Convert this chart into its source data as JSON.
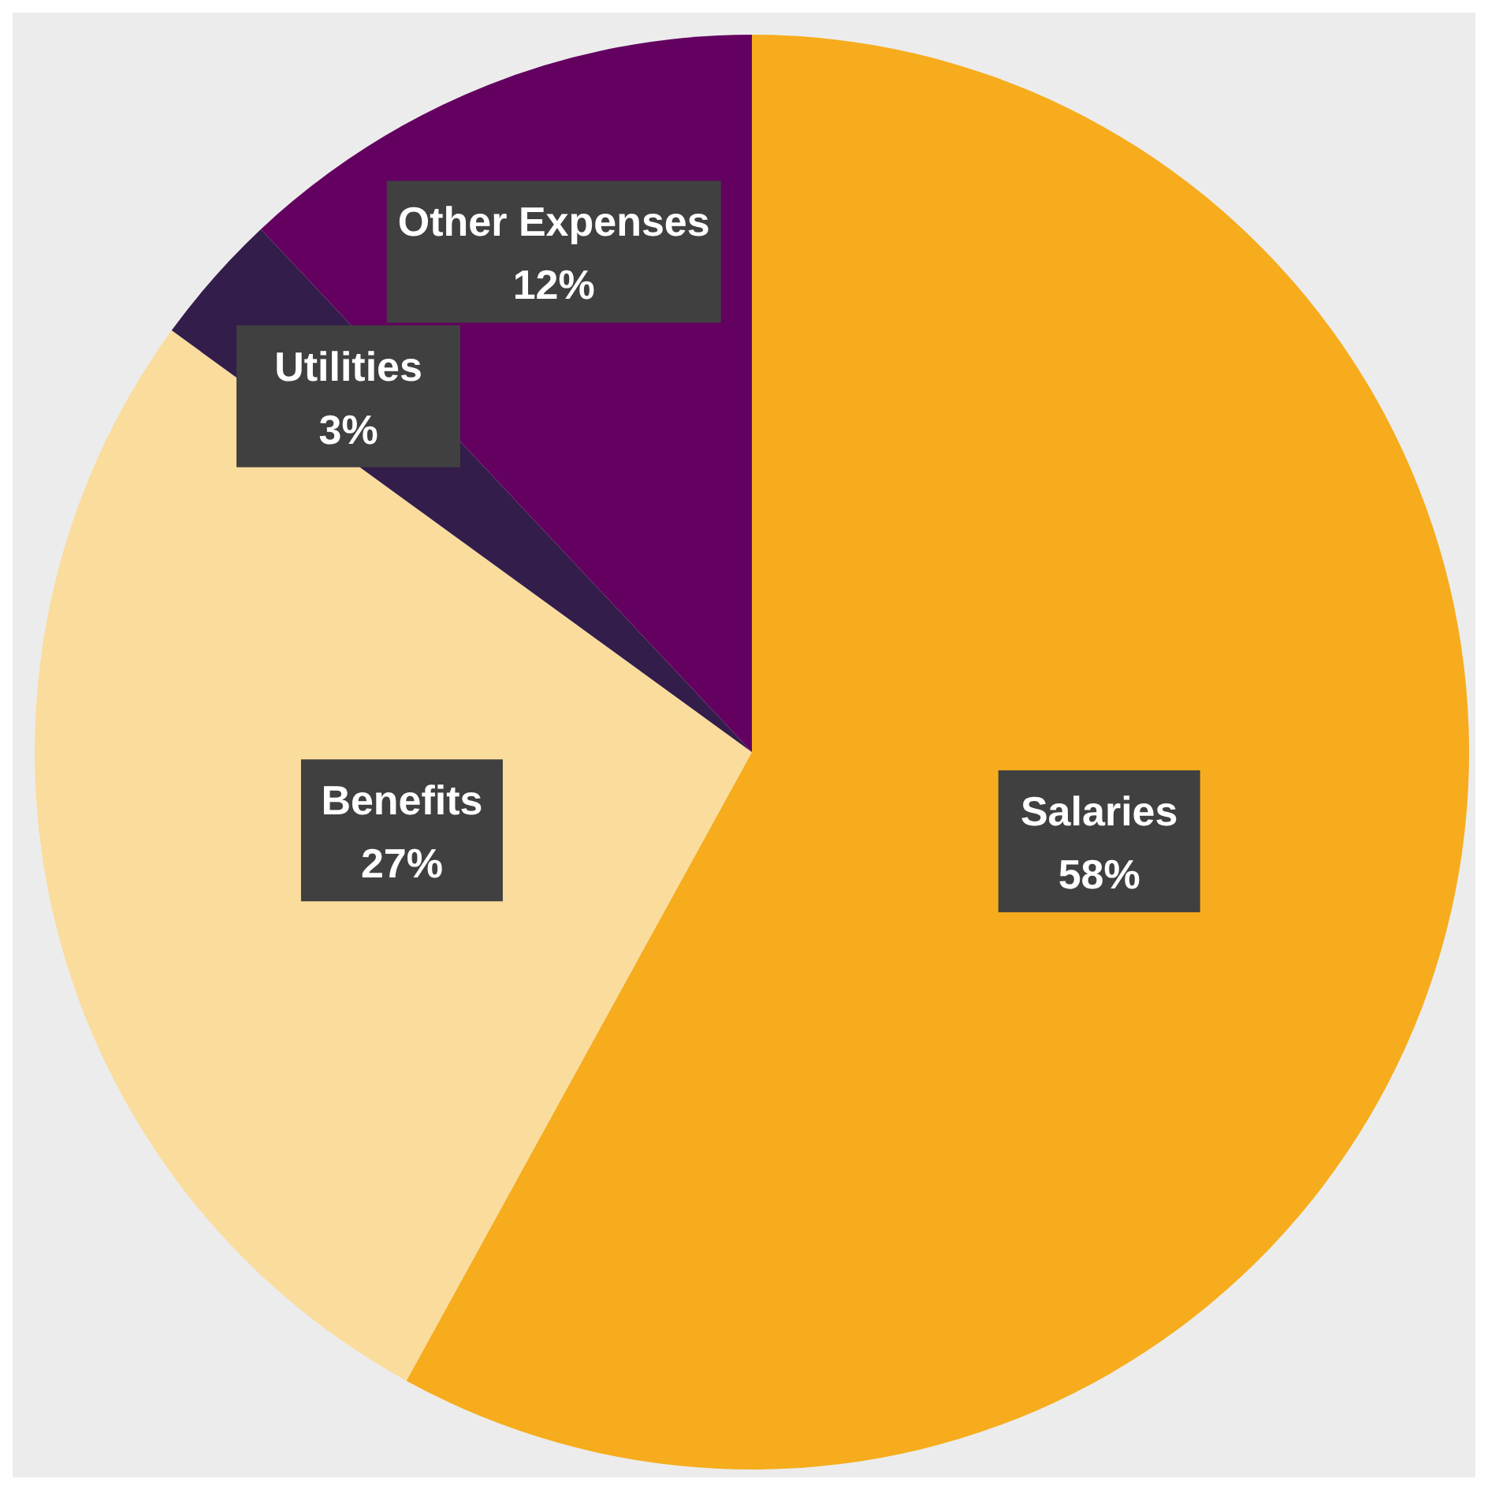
{
  "chart_data": {
    "type": "pie",
    "categories": [
      "Salaries",
      "Benefits",
      "Utilities",
      "Other Expenses"
    ],
    "values": [
      58,
      27,
      3,
      12
    ],
    "colors": [
      "#f6ac1c",
      "#fadc9c",
      "#331d4a",
      "#630060"
    ],
    "value_labels": [
      "58%",
      "27%",
      "3%",
      "12%"
    ],
    "legend": false
  }
}
